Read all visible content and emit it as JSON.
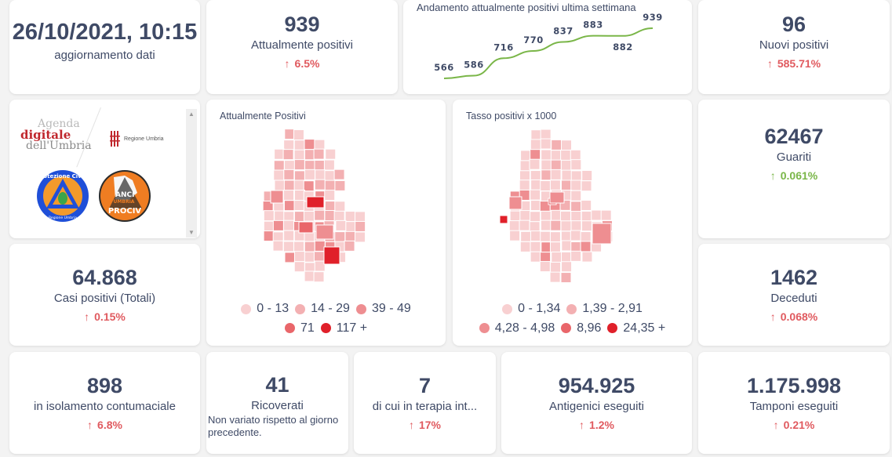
{
  "update": {
    "value": "26/10/2021, 10:15",
    "label": "aggiornamento dati"
  },
  "attualmente_positivi": {
    "value": "939",
    "label": "Attualmente positivi",
    "delta": "6.5%",
    "delta_icon": "arrow-up-icon",
    "delta_color": "#e05a5f"
  },
  "trend": {
    "title": "Andamento attualmente positivi ultima settimana",
    "line_color": "#7ab648"
  },
  "nuovi_positivi": {
    "value": "96",
    "label": "Nuovi positivi",
    "delta": "585.71%",
    "delta_icon": "arrow-up-icon",
    "delta_color": "#e05a5f"
  },
  "logos": {
    "agenda_line1": "Agenda",
    "agenda_line2": "digitale",
    "agenda_line3": "dell'Umbria",
    "regione": "Regione Umbria",
    "protezione": "Protezione Civile",
    "protezione_sub": "Regione Umbria",
    "anci_line1": "ANCI",
    "anci_line2": "UMBRIA",
    "anci_line3": "PROCIV"
  },
  "map_positivi": {
    "title": "Attualmente Positivi",
    "legend": [
      {
        "label": "0 - 13",
        "color": "#f8d0d1"
      },
      {
        "label": "14 - 29",
        "color": "#f3b0b2"
      },
      {
        "label": "39 - 49",
        "color": "#ee8e91"
      },
      {
        "label": "71",
        "color": "#e9666a"
      },
      {
        "label": "117 +",
        "color": "#e0202a"
      }
    ]
  },
  "map_tasso": {
    "title": "Tasso positivi x 1000",
    "legend": [
      {
        "label": "0 - 1,34",
        "color": "#f8d0d1"
      },
      {
        "label": "1,39 - 2,91",
        "color": "#f3b0b2"
      },
      {
        "label": "4,28 - 4,98",
        "color": "#ee8e91"
      },
      {
        "label": "8,96",
        "color": "#e9666a"
      },
      {
        "label": "24,35 +",
        "color": "#e0202a"
      }
    ]
  },
  "guariti": {
    "value": "62467",
    "label": "Guariti",
    "delta": "0.061%",
    "delta_icon": "arrow-up-icon",
    "delta_color": "#7ab648"
  },
  "casi_totali": {
    "value": "64.868",
    "label": "Casi positivi (Totali)",
    "delta": "0.15%",
    "delta_icon": "arrow-up-icon",
    "delta_color": "#e05a5f"
  },
  "deceduti": {
    "value": "1462",
    "label": "Deceduti",
    "delta": "0.068%",
    "delta_icon": "arrow-up-icon",
    "delta_color": "#e05a5f"
  },
  "isolamento": {
    "value": "898",
    "label": "in isolamento contumaciale",
    "delta": "6.8%",
    "delta_icon": "arrow-up-icon",
    "delta_color": "#e05a5f"
  },
  "ricoverati": {
    "value": "41",
    "label": "Ricoverati",
    "note": "Non variato rispetto al giorno precedente."
  },
  "terapia": {
    "value": "7",
    "label": "di cui in terapia int...",
    "delta": "17%",
    "delta_icon": "arrow-up-icon",
    "delta_color": "#e05a5f"
  },
  "antigenici": {
    "value": "954.925",
    "label": "Antigenici eseguiti",
    "delta": "1.2%",
    "delta_icon": "arrow-up-icon",
    "delta_color": "#e05a5f"
  },
  "tamponi": {
    "value": "1.175.998",
    "label": "Tamponi eseguiti",
    "delta": "0.21%",
    "delta_icon": "arrow-up-icon",
    "delta_color": "#e05a5f"
  },
  "chart_data": {
    "type": "line",
    "title": "Andamento attualmente positivi ultima settimana",
    "x": [
      1,
      2,
      3,
      4,
      5,
      6,
      7,
      8
    ],
    "values": [
      566,
      586,
      716,
      770,
      837,
      883,
      882,
      939
    ],
    "data_labels": [
      "566",
      "586",
      "716",
      "770",
      "837",
      "883",
      "882",
      "939"
    ],
    "xlabel": "",
    "ylabel": "",
    "grid": false
  }
}
